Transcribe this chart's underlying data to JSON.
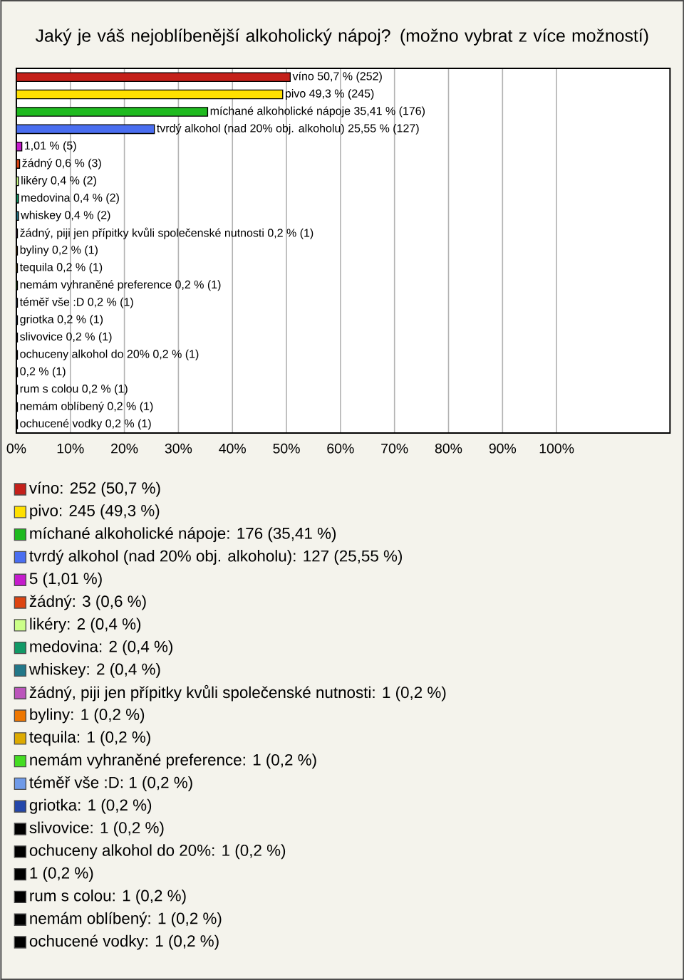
{
  "chart_data": {
    "type": "bar",
    "orientation": "horizontal",
    "title": "Jaký je váš nejoblíbenější alkoholický nápoj? (možno vybrat z více možností)",
    "categories": [
      null,
      null,
      null,
      null,
      null,
      null,
      null,
      null,
      null,
      null,
      null,
      null,
      null,
      null,
      null,
      null,
      null,
      null,
      null,
      null,
      null
    ],
    "values": [
      50.7,
      49.3,
      35.41,
      25.55,
      1.01,
      0.6,
      0.4,
      0.4,
      0.4,
      0.2,
      0.2,
      0.2,
      0.2,
      0.2,
      0.2,
      0.2,
      0.2,
      0.2,
      0.2,
      0.2,
      0.2
    ],
    "value_labels": [
      "víno 50,7 % (252)",
      "pivo 49,3 % (245)",
      "míchané alkoholické nápoje 35,41 % (176)",
      "tvrdý alkohol (nad 20% obj. alkoholu) 25,55 % (127)",
      "1,01 % (5)",
      "žádný 0,6 % (3)",
      "likéry 0,4 % (2)",
      "medovina 0,4 % (2)",
      "whiskey 0,4 % (2)",
      "žádný, piji jen přípitky kvůli společenské nutnosti 0,2 % (1)",
      "byliny 0,2 % (1)",
      "tequila 0,2 % (1)",
      "nemám vyhraněné preference 0,2 % (1)",
      "téměř vše :D 0,2 % (1)",
      "griotka 0,2 % (1)",
      "slivovice 0,2 % (1)",
      "ochuceny alkohol do 20% 0,2 % (1)",
      "0,2 % (1)",
      "rum s colou 0,2 % (1)",
      "nemám oblíbený 0,2 % (1)",
      "ochucené vodky 0,2 % (1)"
    ],
    "colors": [
      "#c4201a",
      "#ffe000",
      "#1fba1f",
      "#4a6ef0",
      "#c51ccc",
      "#dd4411",
      "#ccff88",
      "#119966",
      "#227788",
      "#bb55bb",
      "#ee7700",
      "#ddaa00",
      "#44dd22",
      "#6f9ae8",
      "#2447aa",
      "#000000",
      "#000000",
      "#000000",
      "#000000",
      "#000000",
      "#000000"
    ],
    "xlim": [
      0,
      121
    ],
    "xticks": [
      {
        "value": 0,
        "label": "0%"
      },
      {
        "value": 10,
        "label": "10%"
      },
      {
        "value": 20,
        "label": "20%"
      },
      {
        "value": 30,
        "label": "30%"
      },
      {
        "value": 40,
        "label": "40%"
      },
      {
        "value": 50,
        "label": "50%"
      },
      {
        "value": 60,
        "label": "60%"
      },
      {
        "value": 70,
        "label": "70%"
      },
      {
        "value": 80,
        "label": "80%"
      },
      {
        "value": 90,
        "label": "90%"
      },
      {
        "value": 100,
        "label": "100%"
      }
    ],
    "grid": "x",
    "annotations": [
      "víno: 252 (50,7 %)",
      "pivo: 245 (49,3 %)",
      "míchané alkoholické nápoje: 176 (35,41 %)",
      "tvrdý alkohol (nad 20% obj. alkoholu): 127 (25,55 %)",
      "5 (1,01 %)",
      "žádný: 3 (0,6 %)",
      "likéry: 2 (0,4 %)",
      "medovina: 2 (0,4 %)",
      "whiskey: 2 (0,4 %)",
      "žádný, piji jen přípitky kvůli společenské nutnosti: 1 (0,2 %)",
      "byliny: 1 (0,2 %)",
      "tequila: 1 (0,2 %)",
      "nemám vyhraněné preference: 1 (0,2 %)",
      "téměř vše :D: 1 (0,2 %)",
      "griotka: 1 (0,2 %)",
      "slivovice: 1 (0,2 %)",
      "ochuceny alkohol do 20%: 1 (0,2 %)",
      "1 (0,2 %)",
      "rum s colou: 1 (0,2 %)",
      "nemám oblíbený: 1 (0,2 %)",
      "ochucené vodky: 1 (0,2 %)"
    ]
  }
}
